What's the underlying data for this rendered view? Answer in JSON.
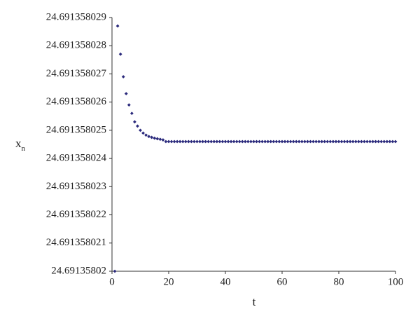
{
  "chart_data": {
    "type": "scatter",
    "x_label": "t",
    "y_label": {
      "text": "x",
      "subscript": "n"
    },
    "color": "#2b2a7c",
    "xlim": [
      0,
      100
    ],
    "xticks": [
      0,
      20,
      40,
      60,
      80,
      100
    ],
    "ylim": [
      24.69135802,
      24.691358029
    ],
    "yticks": [
      24.69135802,
      24.691358021,
      24.691358022,
      24.691358023,
      24.691358024,
      24.691358025,
      24.691358026,
      24.691358027,
      24.691358028,
      24.691358029
    ],
    "x": [
      1,
      2,
      3,
      4,
      5,
      6,
      7,
      8,
      9,
      10,
      11,
      12,
      13,
      14,
      15,
      16,
      17,
      18,
      19,
      20,
      21,
      22,
      23,
      24,
      25,
      26,
      27,
      28,
      29,
      30,
      31,
      32,
      33,
      34,
      35,
      36,
      37,
      38,
      39,
      40,
      41,
      42,
      43,
      44,
      45,
      46,
      47,
      48,
      49,
      50,
      51,
      52,
      53,
      54,
      55,
      56,
      57,
      58,
      59,
      60,
      61,
      62,
      63,
      64,
      65,
      66,
      67,
      68,
      69,
      70,
      71,
      72,
      73,
      74,
      75,
      76,
      77,
      78,
      79,
      80,
      81,
      82,
      83,
      84,
      85,
      86,
      87,
      88,
      89,
      90,
      91,
      92,
      93,
      94,
      95,
      96,
      97,
      98,
      99,
      100
    ],
    "values": [
      24.69135802,
      24.6913580287,
      24.6913580277,
      24.6913580269,
      24.6913580263,
      24.6913580259,
      24.6913580256,
      24.6913580253,
      24.69135802515,
      24.691358025,
      24.6913580249,
      24.69135802483,
      24.69135802478,
      24.69135802475,
      24.69135802472,
      24.6913580247,
      24.69135802468,
      24.69135802466,
      24.6913580246,
      24.6913580246,
      24.6913580246,
      24.6913580246,
      24.6913580246,
      24.6913580246,
      24.6913580246,
      24.6913580246,
      24.6913580246,
      24.6913580246,
      24.6913580246,
      24.6913580246,
      24.6913580246,
      24.6913580246,
      24.6913580246,
      24.6913580246,
      24.6913580246,
      24.6913580246,
      24.6913580246,
      24.6913580246,
      24.6913580246,
      24.6913580246,
      24.6913580246,
      24.6913580246,
      24.6913580246,
      24.6913580246,
      24.6913580246,
      24.6913580246,
      24.6913580246,
      24.6913580246,
      24.6913580246,
      24.6913580246,
      24.6913580246,
      24.6913580246,
      24.6913580246,
      24.6913580246,
      24.6913580246,
      24.6913580246,
      24.6913580246,
      24.6913580246,
      24.6913580246,
      24.6913580246,
      24.6913580246,
      24.6913580246,
      24.6913580246,
      24.6913580246,
      24.6913580246,
      24.6913580246,
      24.6913580246,
      24.6913580246,
      24.6913580246,
      24.6913580246,
      24.6913580246,
      24.6913580246,
      24.6913580246,
      24.6913580246,
      24.6913580246,
      24.6913580246,
      24.6913580246,
      24.6913580246,
      24.6913580246,
      24.6913580246,
      24.6913580246,
      24.6913580246,
      24.6913580246,
      24.6913580246,
      24.6913580246,
      24.6913580246,
      24.6913580246,
      24.6913580246,
      24.6913580246,
      24.6913580246,
      24.6913580246,
      24.6913580246,
      24.6913580246,
      24.6913580246,
      24.6913580246,
      24.6913580246,
      24.6913580246,
      24.6913580246,
      24.6913580246,
      24.6913580246
    ]
  }
}
